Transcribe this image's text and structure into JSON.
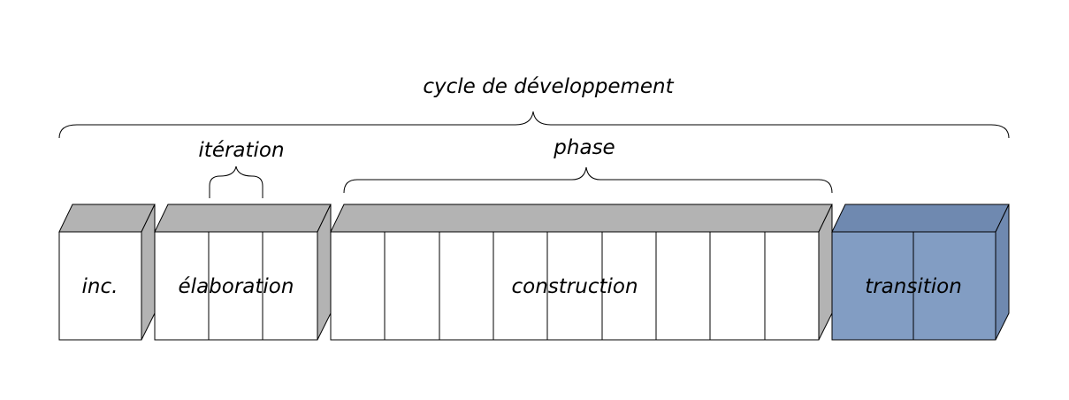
{
  "labels": {
    "cycle": "cycle de développement",
    "iteration": "itération",
    "phase": "phase"
  },
  "phases": [
    {
      "name": "inc.",
      "iterations": 1
    },
    {
      "name": "élaboration",
      "iterations": 3
    },
    {
      "name": "construction",
      "iterations": 9
    },
    {
      "name": "transition",
      "iterations": 2
    }
  ],
  "colors": {
    "front": "#ffffff",
    "top_side": "#b3b3b3",
    "transition_front": "#829dc3",
    "transition_sides": "#6f89b0",
    "stroke": "#000000"
  }
}
